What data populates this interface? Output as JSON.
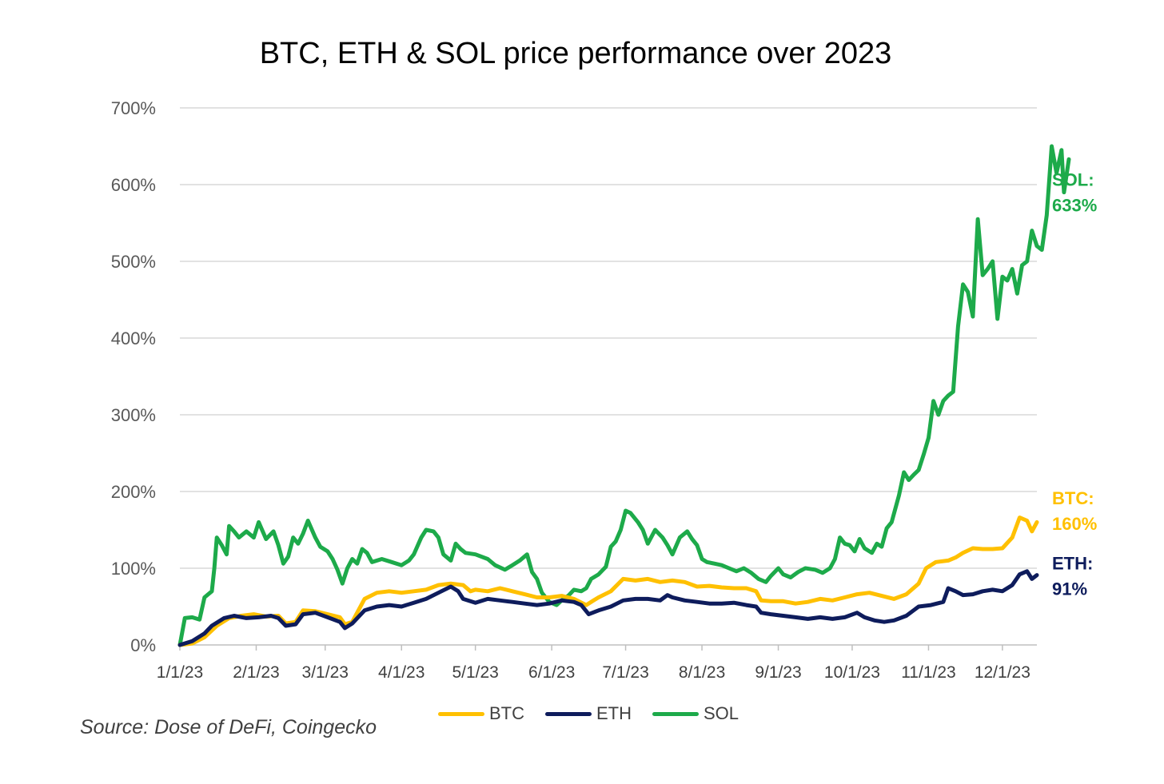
{
  "chart_data": {
    "type": "line",
    "title": "BTC, ETH & SOL price performance over 2023",
    "source": "Source: Dose of DeFi, Coingecko",
    "xlabel": "",
    "ylabel": "",
    "ylim": [
      0,
      700
    ],
    "y_ticks": [
      "0%",
      "100%",
      "200%",
      "300%",
      "400%",
      "500%",
      "600%",
      "700%"
    ],
    "x_ticks": [
      "1/1/23",
      "2/1/23",
      "3/1/23",
      "4/1/23",
      "5/1/23",
      "6/1/23",
      "7/1/23",
      "8/1/23",
      "9/1/23",
      "10/1/23",
      "11/1/23",
      "12/1/23"
    ],
    "x_tick_days": [
      0,
      31,
      59,
      90,
      120,
      151,
      181,
      212,
      243,
      273,
      304,
      334
    ],
    "x_max_day": 348,
    "grid": true,
    "legend_position": "bottom",
    "series": [
      {
        "name": "BTC",
        "color": "#FFC000",
        "end_label": [
          "BTC:",
          "160%"
        ],
        "points": [
          [
            0,
            0
          ],
          [
            5,
            2
          ],
          [
            10,
            10
          ],
          [
            15,
            25
          ],
          [
            20,
            35
          ],
          [
            25,
            38
          ],
          [
            30,
            40
          ],
          [
            35,
            37
          ],
          [
            40,
            38
          ],
          [
            43,
            28
          ],
          [
            47,
            30
          ],
          [
            50,
            45
          ],
          [
            55,
            44
          ],
          [
            60,
            40
          ],
          [
            65,
            36
          ],
          [
            67,
            27
          ],
          [
            70,
            30
          ],
          [
            75,
            60
          ],
          [
            80,
            68
          ],
          [
            85,
            70
          ],
          [
            90,
            68
          ],
          [
            95,
            70
          ],
          [
            100,
            72
          ],
          [
            105,
            78
          ],
          [
            110,
            80
          ],
          [
            115,
            78
          ],
          [
            118,
            70
          ],
          [
            120,
            72
          ],
          [
            125,
            70
          ],
          [
            130,
            74
          ],
          [
            135,
            70
          ],
          [
            140,
            66
          ],
          [
            145,
            62
          ],
          [
            150,
            62
          ],
          [
            155,
            64
          ],
          [
            160,
            60
          ],
          [
            165,
            52
          ],
          [
            168,
            58
          ],
          [
            170,
            62
          ],
          [
            175,
            70
          ],
          [
            180,
            86
          ],
          [
            185,
            84
          ],
          [
            190,
            86
          ],
          [
            195,
            82
          ],
          [
            200,
            84
          ],
          [
            205,
            82
          ],
          [
            210,
            76
          ],
          [
            215,
            77
          ],
          [
            220,
            75
          ],
          [
            225,
            74
          ],
          [
            230,
            74
          ],
          [
            234,
            70
          ],
          [
            236,
            58
          ],
          [
            240,
            57
          ],
          [
            245,
            57
          ],
          [
            250,
            54
          ],
          [
            255,
            56
          ],
          [
            260,
            60
          ],
          [
            265,
            58
          ],
          [
            270,
            62
          ],
          [
            275,
            66
          ],
          [
            280,
            68
          ],
          [
            285,
            64
          ],
          [
            290,
            60
          ],
          [
            295,
            66
          ],
          [
            300,
            80
          ],
          [
            303,
            100
          ],
          [
            307,
            108
          ],
          [
            312,
            110
          ],
          [
            315,
            114
          ],
          [
            318,
            120
          ],
          [
            322,
            126
          ],
          [
            326,
            125
          ],
          [
            330,
            125
          ],
          [
            334,
            126
          ],
          [
            338,
            140
          ],
          [
            341,
            166
          ],
          [
            344,
            162
          ],
          [
            346,
            148
          ],
          [
            348,
            160
          ]
        ]
      },
      {
        "name": "ETH",
        "color": "#0E1C5C",
        "end_label": [
          "ETH:",
          "91%"
        ],
        "points": [
          [
            0,
            0
          ],
          [
            5,
            5
          ],
          [
            10,
            15
          ],
          [
            13,
            25
          ],
          [
            18,
            35
          ],
          [
            22,
            38
          ],
          [
            27,
            35
          ],
          [
            32,
            36
          ],
          [
            37,
            38
          ],
          [
            40,
            35
          ],
          [
            43,
            25
          ],
          [
            47,
            27
          ],
          [
            50,
            40
          ],
          [
            55,
            42
          ],
          [
            60,
            36
          ],
          [
            65,
            30
          ],
          [
            67,
            22
          ],
          [
            70,
            28
          ],
          [
            75,
            45
          ],
          [
            80,
            50
          ],
          [
            85,
            52
          ],
          [
            90,
            50
          ],
          [
            95,
            55
          ],
          [
            100,
            60
          ],
          [
            105,
            68
          ],
          [
            110,
            76
          ],
          [
            113,
            70
          ],
          [
            115,
            60
          ],
          [
            120,
            55
          ],
          [
            125,
            60
          ],
          [
            130,
            58
          ],
          [
            135,
            56
          ],
          [
            140,
            54
          ],
          [
            145,
            52
          ],
          [
            150,
            54
          ],
          [
            155,
            58
          ],
          [
            160,
            56
          ],
          [
            163,
            52
          ],
          [
            166,
            40
          ],
          [
            170,
            45
          ],
          [
            175,
            50
          ],
          [
            180,
            58
          ],
          [
            185,
            60
          ],
          [
            190,
            60
          ],
          [
            195,
            58
          ],
          [
            198,
            65
          ],
          [
            200,
            62
          ],
          [
            205,
            58
          ],
          [
            210,
            56
          ],
          [
            215,
            54
          ],
          [
            220,
            54
          ],
          [
            225,
            55
          ],
          [
            230,
            52
          ],
          [
            234,
            50
          ],
          [
            236,
            42
          ],
          [
            240,
            40
          ],
          [
            245,
            38
          ],
          [
            250,
            36
          ],
          [
            255,
            34
          ],
          [
            260,
            36
          ],
          [
            265,
            34
          ],
          [
            270,
            36
          ],
          [
            275,
            42
          ],
          [
            278,
            36
          ],
          [
            282,
            32
          ],
          [
            286,
            30
          ],
          [
            290,
            32
          ],
          [
            295,
            38
          ],
          [
            300,
            50
          ],
          [
            305,
            52
          ],
          [
            310,
            56
          ],
          [
            312,
            74
          ],
          [
            315,
            70
          ],
          [
            318,
            65
          ],
          [
            322,
            66
          ],
          [
            326,
            70
          ],
          [
            330,
            72
          ],
          [
            334,
            70
          ],
          [
            338,
            78
          ],
          [
            341,
            92
          ],
          [
            344,
            96
          ],
          [
            346,
            86
          ],
          [
            348,
            91
          ]
        ]
      },
      {
        "name": "SOL",
        "color": "#1DAA4A",
        "end_label": [
          "SOL:",
          "633%"
        ],
        "points": [
          [
            0,
            0
          ],
          [
            2,
            35
          ],
          [
            5,
            36
          ],
          [
            8,
            33
          ],
          [
            10,
            62
          ],
          [
            13,
            70
          ],
          [
            14,
            100
          ],
          [
            15,
            140
          ],
          [
            17,
            130
          ],
          [
            19,
            118
          ],
          [
            20,
            155
          ],
          [
            22,
            148
          ],
          [
            24,
            140
          ],
          [
            27,
            148
          ],
          [
            30,
            140
          ],
          [
            32,
            160
          ],
          [
            35,
            138
          ],
          [
            38,
            148
          ],
          [
            40,
            130
          ],
          [
            42,
            106
          ],
          [
            44,
            115
          ],
          [
            46,
            140
          ],
          [
            48,
            132
          ],
          [
            50,
            145
          ],
          [
            52,
            162
          ],
          [
            55,
            140
          ],
          [
            57,
            128
          ],
          [
            60,
            122
          ],
          [
            62,
            112
          ],
          [
            64,
            98
          ],
          [
            66,
            80
          ],
          [
            68,
            100
          ],
          [
            70,
            112
          ],
          [
            72,
            106
          ],
          [
            74,
            125
          ],
          [
            76,
            120
          ],
          [
            78,
            108
          ],
          [
            82,
            112
          ],
          [
            86,
            108
          ],
          [
            90,
            104
          ],
          [
            93,
            110
          ],
          [
            95,
            118
          ],
          [
            98,
            140
          ],
          [
            100,
            150
          ],
          [
            103,
            148
          ],
          [
            105,
            140
          ],
          [
            107,
            118
          ],
          [
            110,
            110
          ],
          [
            112,
            132
          ],
          [
            114,
            125
          ],
          [
            116,
            120
          ],
          [
            120,
            118
          ],
          [
            125,
            112
          ],
          [
            128,
            104
          ],
          [
            132,
            98
          ],
          [
            135,
            104
          ],
          [
            138,
            110
          ],
          [
            141,
            118
          ],
          [
            143,
            95
          ],
          [
            145,
            86
          ],
          [
            147,
            68
          ],
          [
            150,
            56
          ],
          [
            153,
            52
          ],
          [
            155,
            58
          ],
          [
            158,
            65
          ],
          [
            160,
            72
          ],
          [
            163,
            70
          ],
          [
            165,
            74
          ],
          [
            167,
            86
          ],
          [
            170,
            92
          ],
          [
            173,
            102
          ],
          [
            175,
            128
          ],
          [
            177,
            135
          ],
          [
            179,
            150
          ],
          [
            181,
            175
          ],
          [
            183,
            172
          ],
          [
            186,
            160
          ],
          [
            188,
            150
          ],
          [
            190,
            132
          ],
          [
            193,
            150
          ],
          [
            196,
            140
          ],
          [
            198,
            130
          ],
          [
            200,
            118
          ],
          [
            203,
            140
          ],
          [
            206,
            148
          ],
          [
            208,
            138
          ],
          [
            210,
            130
          ],
          [
            212,
            112
          ],
          [
            214,
            108
          ],
          [
            217,
            106
          ],
          [
            220,
            104
          ],
          [
            223,
            100
          ],
          [
            226,
            96
          ],
          [
            229,
            100
          ],
          [
            232,
            94
          ],
          [
            235,
            86
          ],
          [
            238,
            82
          ],
          [
            240,
            90
          ],
          [
            243,
            100
          ],
          [
            245,
            92
          ],
          [
            248,
            88
          ],
          [
            251,
            95
          ],
          [
            254,
            100
          ],
          [
            258,
            98
          ],
          [
            261,
            94
          ],
          [
            264,
            100
          ],
          [
            266,
            112
          ],
          [
            268,
            140
          ],
          [
            270,
            132
          ],
          [
            272,
            130
          ],
          [
            274,
            122
          ],
          [
            276,
            138
          ],
          [
            278,
            126
          ],
          [
            281,
            120
          ],
          [
            283,
            132
          ],
          [
            285,
            128
          ],
          [
            287,
            152
          ],
          [
            289,
            160
          ],
          [
            292,
            195
          ],
          [
            294,
            225
          ],
          [
            296,
            215
          ],
          [
            298,
            222
          ],
          [
            300,
            228
          ],
          [
            302,
            248
          ],
          [
            304,
            270
          ],
          [
            306,
            318
          ],
          [
            308,
            300
          ],
          [
            310,
            318
          ],
          [
            312,
            325
          ],
          [
            314,
            330
          ],
          [
            316,
            415
          ],
          [
            318,
            470
          ],
          [
            320,
            460
          ],
          [
            322,
            428
          ],
          [
            324,
            555
          ],
          [
            326,
            482
          ],
          [
            328,
            490
          ],
          [
            330,
            500
          ],
          [
            332,
            425
          ],
          [
            334,
            480
          ],
          [
            336,
            475
          ],
          [
            338,
            490
          ],
          [
            340,
            458
          ],
          [
            342,
            495
          ],
          [
            344,
            500
          ],
          [
            346,
            540
          ],
          [
            348,
            520
          ],
          [
            350,
            515
          ],
          [
            352,
            560
          ],
          [
            354,
            650
          ],
          [
            356,
            615
          ],
          [
            358,
            645
          ],
          [
            359,
            590
          ],
          [
            361,
            633
          ]
        ]
      }
    ]
  }
}
